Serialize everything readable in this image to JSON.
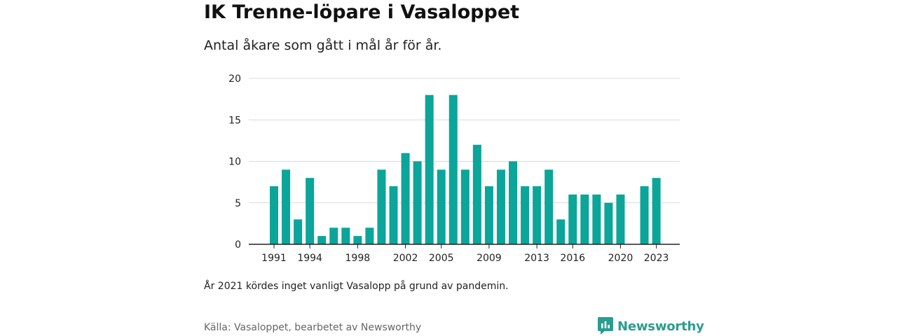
{
  "header": {
    "title": "IK Trenne-löpare i Vasaloppet",
    "subtitle": "Antal åkare som gått i mål år för år."
  },
  "footer": {
    "note": "År 2021 kördes inget vanligt Vasalopp på grund av pandemin.",
    "source": "Källa: Vasaloppet, bearbetet av Newsworthy",
    "brand": "Newsworthy",
    "brand_icon": "newsworthy-logo-icon"
  },
  "colors": {
    "bar": "#0ba59a",
    "grid": "#d9d9d9",
    "axis": "#222222",
    "brand": "#2a9d8f"
  },
  "chart_data": {
    "type": "bar",
    "title": "",
    "xlabel": "",
    "ylabel": "",
    "ylim": [
      0,
      20
    ],
    "yticks": [
      0,
      5,
      10,
      15,
      20
    ],
    "xticks": [
      1991,
      1994,
      1998,
      2002,
      2005,
      2009,
      2013,
      2016,
      2020,
      2023
    ],
    "grid": true,
    "categories": [
      1991,
      1992,
      1993,
      1994,
      1995,
      1996,
      1997,
      1998,
      1999,
      2000,
      2001,
      2002,
      2003,
      2004,
      2005,
      2006,
      2007,
      2008,
      2009,
      2010,
      2011,
      2012,
      2013,
      2014,
      2015,
      2016,
      2017,
      2018,
      2019,
      2020,
      2021,
      2022,
      2023
    ],
    "values": [
      7,
      9,
      3,
      8,
      1,
      2,
      2,
      1,
      2,
      9,
      7,
      11,
      10,
      18,
      9,
      18,
      9,
      12,
      7,
      9,
      10,
      7,
      7,
      9,
      3,
      6,
      6,
      6,
      5,
      6,
      null,
      7,
      8
    ]
  }
}
